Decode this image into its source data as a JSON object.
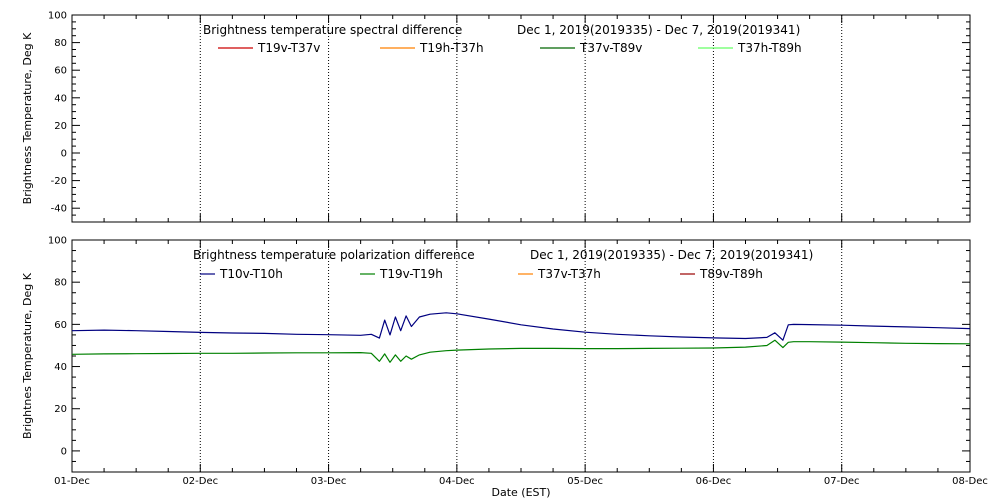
{
  "chart_data": [
    {
      "type": "line",
      "title": "Brightness temperature spectral difference",
      "date_range": "Dec  1, 2019(2019335) - Dec  7, 2019(2019341)",
      "ylabel": "Brightness Temperature, Deg K",
      "xlabel": "",
      "ylim": [
        -50,
        100
      ],
      "yticks": [
        -40,
        -20,
        0,
        20,
        40,
        60,
        80,
        100
      ],
      "xlim": [
        "2019-12-01",
        "2019-12-08"
      ],
      "x_tick_labels": [
        "01-Dec",
        "02-Dec",
        "03-Dec",
        "04-Dec",
        "05-Dec",
        "06-Dec",
        "07-Dec",
        "08-Dec"
      ],
      "x_tick_labels_visible": false,
      "grid": "vertical dotted at day boundaries",
      "legend_placement": "top",
      "series": [
        {
          "name": "T19v-T37v",
          "color": "#cc0000",
          "values": []
        },
        {
          "name": "T19h-T37h",
          "color": "#ff8000",
          "values": []
        },
        {
          "name": "T37v-T89v",
          "color": "#006600",
          "values": []
        },
        {
          "name": "T37h-T89h",
          "color": "#66ff66",
          "values": []
        }
      ]
    },
    {
      "type": "line",
      "title": "Brightness temperature polarization difference",
      "date_range": "Dec  1, 2019(2019335) - Dec  7, 2019(2019341)",
      "ylabel": "Brightnes Temperature, Deg K",
      "xlabel": "Date (EST)",
      "ylim": [
        -10,
        100
      ],
      "yticks": [
        0,
        20,
        40,
        60,
        80,
        100
      ],
      "xlim": [
        "2019-12-01",
        "2019-12-08"
      ],
      "x_tick_labels": [
        "01-Dec",
        "02-Dec",
        "03-Dec",
        "04-Dec",
        "05-Dec",
        "06-Dec",
        "07-Dec",
        "08-Dec"
      ],
      "x_tick_labels_visible": true,
      "grid": "vertical dotted at day boundaries",
      "legend_placement": "top",
      "series": [
        {
          "name": "T10v-T10h",
          "color": "#000080",
          "x": [
            "2019-12-01 00:00",
            "2019-12-01 06:00",
            "2019-12-01 12:00",
            "2019-12-01 18:00",
            "2019-12-02 00:00",
            "2019-12-02 06:00",
            "2019-12-02 12:00",
            "2019-12-02 18:00",
            "2019-12-03 00:00",
            "2019-12-03 06:00",
            "2019-12-03 08:00",
            "2019-12-03 09:30",
            "2019-12-03 10:30",
            "2019-12-03 11:30",
            "2019-12-03 12:30",
            "2019-12-03 13:30",
            "2019-12-03 14:30",
            "2019-12-03 15:30",
            "2019-12-03 17:00",
            "2019-12-03 19:00",
            "2019-12-03 22:00",
            "2019-12-04 00:00",
            "2019-12-04 06:00",
            "2019-12-04 12:00",
            "2019-12-04 18:00",
            "2019-12-05 00:00",
            "2019-12-05 06:00",
            "2019-12-05 12:00",
            "2019-12-05 18:00",
            "2019-12-06 00:00",
            "2019-12-06 06:00",
            "2019-12-06 10:00",
            "2019-12-06 11:30",
            "2019-12-06 13:00",
            "2019-12-06 14:00",
            "2019-12-06 15:00",
            "2019-12-06 18:00",
            "2019-12-07 00:00",
            "2019-12-07 06:00",
            "2019-12-07 12:00",
            "2019-12-07 18:00",
            "2019-12-08 00:00"
          ],
          "values": [
            57.0,
            57.3,
            57.0,
            56.6,
            56.2,
            55.9,
            55.7,
            55.3,
            55.1,
            54.8,
            55.3,
            53.5,
            62.0,
            55.0,
            63.5,
            57.0,
            64.0,
            59.0,
            63.5,
            64.8,
            65.5,
            65.0,
            62.5,
            59.8,
            57.8,
            56.3,
            55.3,
            54.6,
            54.0,
            53.6,
            53.3,
            53.8,
            56.0,
            52.5,
            59.8,
            60.0,
            59.9,
            59.6,
            59.2,
            58.8,
            58.4,
            58.0
          ]
        },
        {
          "name": "T19v-T19h",
          "color": "#008000",
          "x": [
            "2019-12-01 00:00",
            "2019-12-01 06:00",
            "2019-12-01 12:00",
            "2019-12-01 18:00",
            "2019-12-02 00:00",
            "2019-12-02 06:00",
            "2019-12-02 12:00",
            "2019-12-02 18:00",
            "2019-12-03 00:00",
            "2019-12-03 06:00",
            "2019-12-03 08:00",
            "2019-12-03 09:30",
            "2019-12-03 10:30",
            "2019-12-03 11:30",
            "2019-12-03 12:30",
            "2019-12-03 13:30",
            "2019-12-03 14:30",
            "2019-12-03 15:30",
            "2019-12-03 17:00",
            "2019-12-03 19:00",
            "2019-12-03 22:00",
            "2019-12-04 00:00",
            "2019-12-04 06:00",
            "2019-12-04 12:00",
            "2019-12-04 18:00",
            "2019-12-05 00:00",
            "2019-12-05 06:00",
            "2019-12-05 12:00",
            "2019-12-05 18:00",
            "2019-12-06 00:00",
            "2019-12-06 06:00",
            "2019-12-06 10:00",
            "2019-12-06 11:30",
            "2019-12-06 13:00",
            "2019-12-06 14:00",
            "2019-12-06 15:00",
            "2019-12-06 18:00",
            "2019-12-07 00:00",
            "2019-12-07 06:00",
            "2019-12-07 12:00",
            "2019-12-07 18:00",
            "2019-12-08 00:00"
          ],
          "values": [
            45.8,
            46.0,
            46.1,
            46.2,
            46.3,
            46.3,
            46.4,
            46.5,
            46.5,
            46.6,
            46.3,
            42.5,
            46.0,
            42.0,
            45.5,
            42.5,
            45.0,
            43.5,
            45.5,
            46.8,
            47.5,
            47.8,
            48.3,
            48.6,
            48.6,
            48.5,
            48.5,
            48.6,
            48.7,
            48.8,
            49.2,
            50.0,
            52.5,
            49.0,
            51.5,
            51.8,
            51.8,
            51.6,
            51.3,
            51.0,
            50.9,
            50.8
          ]
        },
        {
          "name": "T37v-T37h",
          "color": "#ff8000",
          "values": []
        },
        {
          "name": "T89v-T89h",
          "color": "#990000",
          "values": []
        }
      ]
    }
  ]
}
